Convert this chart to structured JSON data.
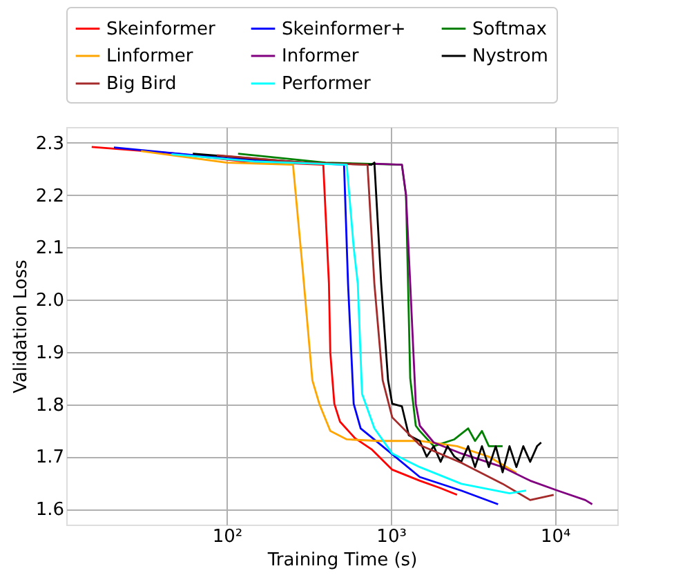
{
  "chart_data": {
    "type": "line",
    "xlabel": "Training Time (s)",
    "ylabel": "Validation Loss",
    "log": "x",
    "grid": true,
    "legend": "top",
    "xlim": [
      10.5,
      24000
    ],
    "xticks": [
      {
        "value": 100,
        "label": "10²"
      },
      {
        "value": 1000,
        "label": "10³"
      },
      {
        "value": 10000,
        "label": "10⁴"
      }
    ],
    "ylim": [
      1.57,
      2.33
    ],
    "yticks": [
      1.6,
      1.7,
      1.8,
      1.9,
      {
        "value": 2.0,
        "label": "2.0"
      },
      2.1,
      2.2,
      2.3
    ],
    "series": [
      {
        "name": "Skeinformer",
        "color": "#ff0000",
        "x": [
          15,
          46,
          121,
          387,
          419,
          427,
          452,
          489,
          605,
          762,
          1019,
          1500,
          2000,
          2530
        ],
        "values": [
          2.292,
          2.28,
          2.265,
          2.258,
          2.031,
          1.899,
          1.801,
          1.767,
          1.735,
          1.714,
          1.675,
          1.654,
          1.64,
          1.627
        ]
      },
      {
        "name": "Skeinformer+",
        "color": "#0000ff",
        "x": [
          20.5,
          100,
          518,
          548,
          593,
          654,
          873,
          1500,
          2690,
          4500
        ],
        "values": [
          2.291,
          2.27,
          2.258,
          2.03,
          1.801,
          1.754,
          1.722,
          1.661,
          1.635,
          1.609
        ]
      },
      {
        "name": "Softmax",
        "color": "#008000",
        "x": [
          117,
          400,
          1167,
          1236,
          1311,
          1418,
          1500,
          1824,
          2437,
          2958,
          3258,
          3589,
          3954,
          4797
        ],
        "values": [
          2.279,
          2.262,
          2.258,
          2.2,
          1.85,
          1.759,
          1.749,
          1.72,
          1.733,
          1.754,
          1.73,
          1.749,
          1.72,
          1.72
        ]
      },
      {
        "name": "Linformer",
        "color": "#ffa500",
        "x": [
          30,
          100,
          253,
          290,
          332,
          366,
          427,
          538,
          839,
          1500,
          2530,
          3950,
          5820
        ],
        "values": [
          2.284,
          2.262,
          2.258,
          2.057,
          1.846,
          1.801,
          1.749,
          1.733,
          1.73,
          1.73,
          1.72,
          1.7,
          1.669
        ]
      },
      {
        "name": "Informer",
        "color": "#800080",
        "x": [
          793,
          1167,
          1236,
          1311,
          1418,
          1500,
          1824,
          2685,
          4797,
          7063,
          10400,
          15300,
          16870
        ],
        "values": [
          2.26,
          2.258,
          2.2,
          2.031,
          1.801,
          1.759,
          1.727,
          1.706,
          1.68,
          1.654,
          1.635,
          1.617,
          1.609
        ]
      },
      {
        "name": "Nystrom",
        "color": "#000000",
        "x": [
          62,
          300,
          762,
          793,
          873,
          961,
          1019,
          1167,
          1285,
          1500,
          1652,
          1824,
          2009,
          2213,
          2437,
          2685,
          2958,
          3258,
          3589,
          3954,
          4355,
          4797,
          5284,
          5821,
          6412,
          7063,
          7780,
          8241
        ],
        "values": [
          2.279,
          2.262,
          2.258,
          2.262,
          2.03,
          1.846,
          1.801,
          1.796,
          1.741,
          1.73,
          1.7,
          1.72,
          1.69,
          1.72,
          1.7,
          1.69,
          1.72,
          1.68,
          1.72,
          1.68,
          1.72,
          1.67,
          1.72,
          1.68,
          1.72,
          1.69,
          1.72,
          1.727
        ]
      },
      {
        "name": "Big Bird",
        "color": "#a52a2a",
        "x": [
          87,
          300,
          720,
          793,
          891,
          1019,
          1500,
          2690,
          4800,
          7060,
          9820
        ],
        "values": [
          2.276,
          2.262,
          2.258,
          2.03,
          1.846,
          1.775,
          1.722,
          1.688,
          1.648,
          1.617,
          1.627
        ]
      },
      {
        "name": "Performer",
        "color": "#00ffff",
        "x": [
          46,
          150,
          538,
          593,
          628,
          667,
          793,
          1019,
          1500,
          2690,
          5290,
          6670
        ],
        "values": [
          2.278,
          2.264,
          2.258,
          2.1,
          2.031,
          1.82,
          1.754,
          1.706,
          1.68,
          1.648,
          1.63,
          1.635
        ]
      }
    ]
  }
}
